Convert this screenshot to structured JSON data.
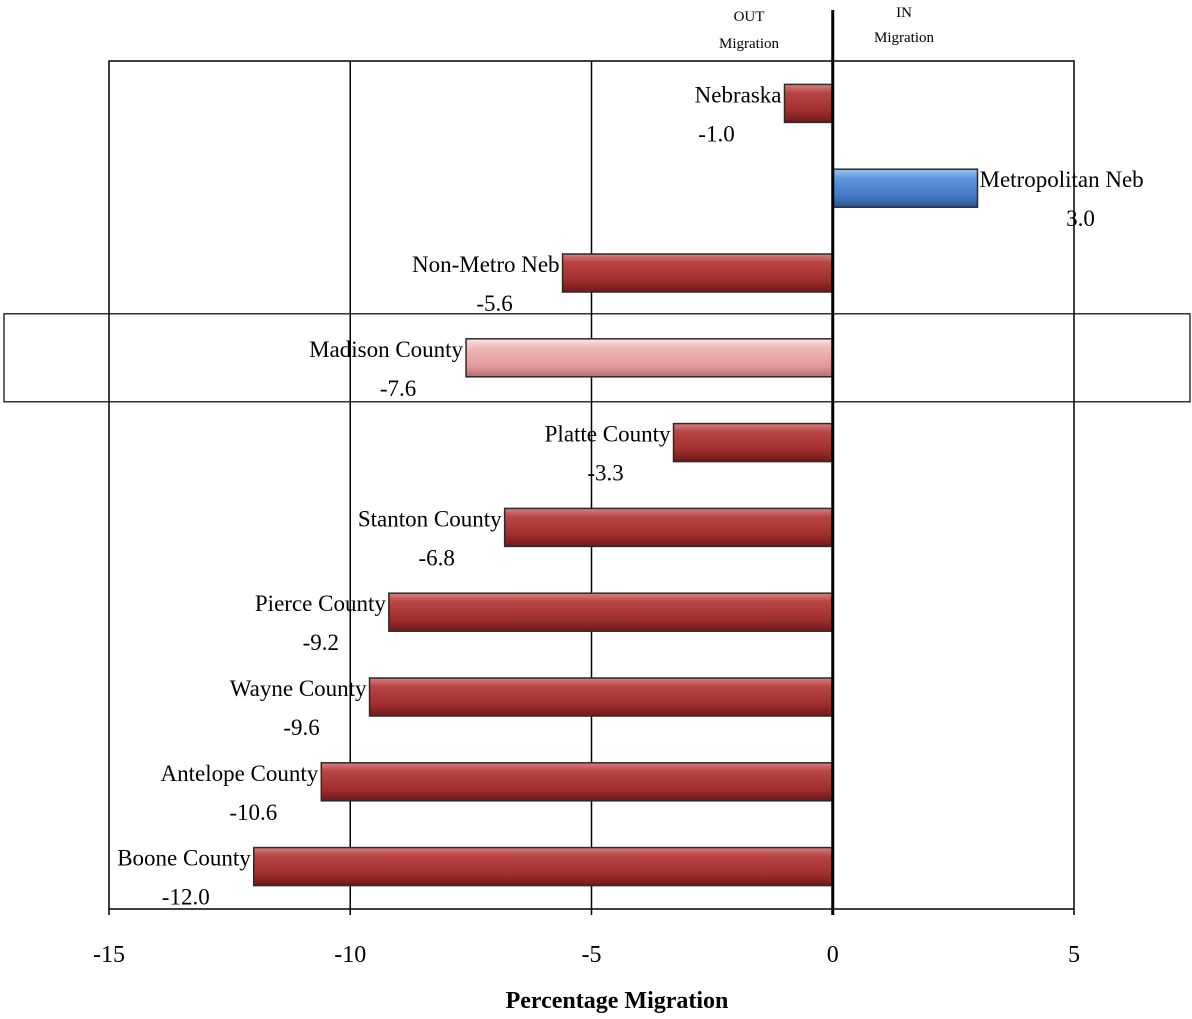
{
  "chart_data": {
    "type": "bar",
    "orientation": "horizontal",
    "categories": [
      "Nebraska",
      "Metropolitan Neb",
      "Non-Metro Neb",
      "Madison County",
      "Platte County",
      "Stanton County",
      "Pierce County",
      "Wayne County",
      "Antelope County",
      "Boone County"
    ],
    "values": [
      -1.0,
      3.0,
      -5.6,
      -7.6,
      -3.3,
      -6.8,
      -9.2,
      -9.6,
      -10.6,
      -12.0
    ],
    "value_labels": [
      "-1.0",
      "3.0",
      "-5.6",
      "-7.6",
      "-3.3",
      "-6.8",
      "-9.2",
      "-9.6",
      "-10.6",
      "-12.0"
    ],
    "highlighted_category": "Madison County",
    "title": "",
    "xlabel": "Percentage Migration",
    "ylabel": "",
    "xlim": [
      -15,
      5
    ],
    "x_ticks": [
      -15,
      -10,
      -5,
      0,
      5
    ],
    "x_tick_labels": [
      "-15",
      "-10",
      "-5",
      "0",
      "5"
    ],
    "grid": "vertical",
    "legend": "none",
    "annotations": {
      "out_line1": "OUT",
      "out_line2": "Migration",
      "in_line1": "IN",
      "in_line2": "Migration"
    },
    "colors": {
      "negative": "#a83232",
      "positive": "#4f86d4",
      "highlight": "#e8a5a5"
    }
  }
}
